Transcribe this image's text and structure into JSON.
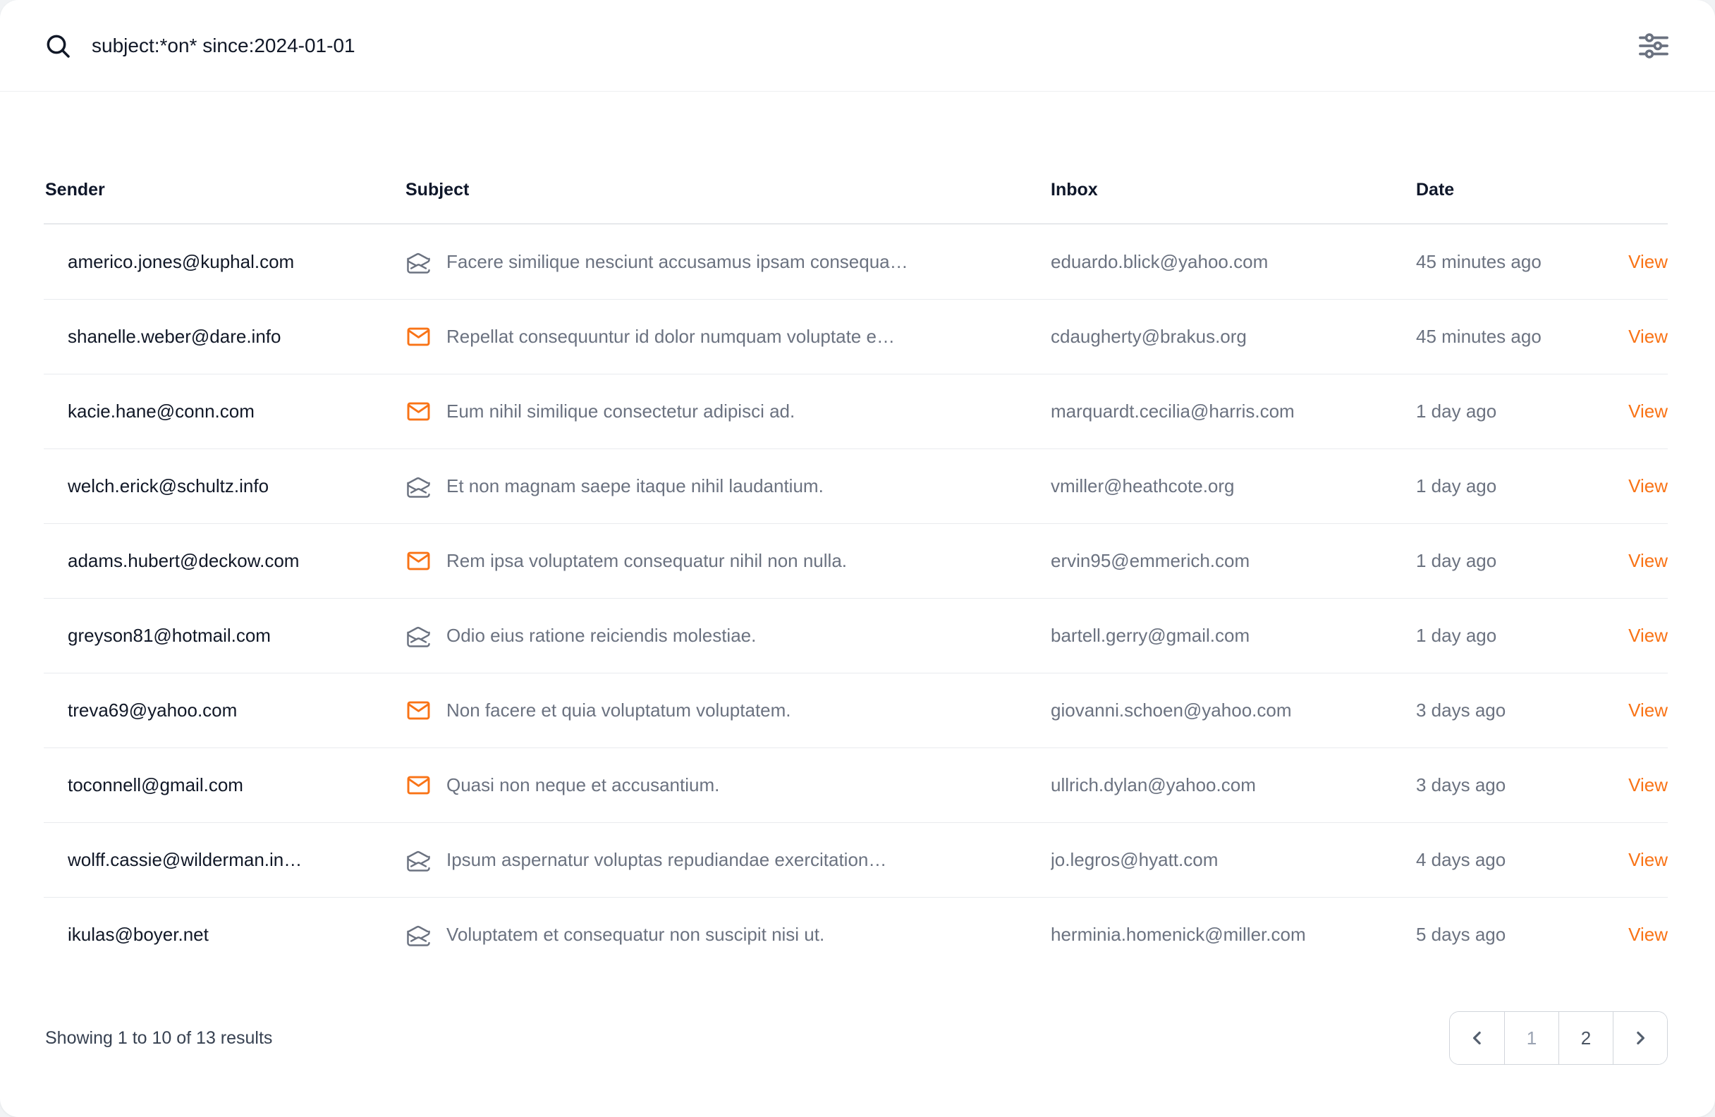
{
  "search": {
    "query": "subject:*on* since:2024-01-01",
    "icons": {
      "left": "search-icon",
      "right": "filters-icon"
    }
  },
  "table": {
    "columns": [
      "Sender",
      "Subject",
      "Inbox",
      "Date"
    ],
    "view_label": "View",
    "status_icons": {
      "unread": "envelope-icon",
      "read": "envelope-open-icon"
    },
    "rows": [
      {
        "sender": "americo.jones@kuphal.com",
        "status": "read",
        "subject": "Facere similique nesciunt accusamus ipsam consequa…",
        "inbox": "eduardo.blick@yahoo.com",
        "date": "45 minutes ago"
      },
      {
        "sender": "shanelle.weber@dare.info",
        "status": "unread",
        "subject": "Repellat consequuntur id dolor numquam voluptate e…",
        "inbox": "cdaugherty@brakus.org",
        "date": "45 minutes ago"
      },
      {
        "sender": "kacie.hane@conn.com",
        "status": "unread",
        "subject": "Eum nihil similique consectetur adipisci ad.",
        "inbox": "marquardt.cecilia@harris.com",
        "date": "1 day ago"
      },
      {
        "sender": "welch.erick@schultz.info",
        "status": "read",
        "subject": "Et non magnam saepe itaque nihil laudantium.",
        "inbox": "vmiller@heathcote.org",
        "date": "1 day ago"
      },
      {
        "sender": "adams.hubert@deckow.com",
        "status": "unread",
        "subject": "Rem ipsa voluptatem consequatur nihil non nulla.",
        "inbox": "ervin95@emmerich.com",
        "date": "1 day ago"
      },
      {
        "sender": "greyson81@hotmail.com",
        "status": "read",
        "subject": "Odio eius ratione reiciendis molestiae.",
        "inbox": "bartell.gerry@gmail.com",
        "date": "1 day ago"
      },
      {
        "sender": "treva69@yahoo.com",
        "status": "unread",
        "subject": "Non facere et quia voluptatum voluptatem.",
        "inbox": "giovanni.schoen@yahoo.com",
        "date": "3 days ago"
      },
      {
        "sender": "toconnell@gmail.com",
        "status": "unread",
        "subject": "Quasi non neque et accusantium.",
        "inbox": "ullrich.dylan@yahoo.com",
        "date": "3 days ago"
      },
      {
        "sender": "wolff.cassie@wilderman.in…",
        "status": "read",
        "subject": "Ipsum aspernatur voluptas repudiandae exercitation…",
        "inbox": "jo.legros@hyatt.com",
        "date": "4 days ago"
      },
      {
        "sender": "ikulas@boyer.net",
        "status": "read",
        "subject": "Voluptatem et consequatur non suscipit nisi ut.",
        "inbox": "herminia.homenick@miller.com",
        "date": "5 days ago"
      }
    ]
  },
  "footer": {
    "summary": "Showing 1 to 10 of 13 results",
    "pages": [
      "1",
      "2"
    ],
    "current_page": "1",
    "prev_icon": "chevron-left-icon",
    "next_icon": "chevron-right-icon"
  },
  "colors": {
    "accent_orange": "#f97316",
    "unread_icon": "#f97316",
    "read_icon": "#6b7280",
    "sender_text": "#111827",
    "muted_text": "#6b7280",
    "page_background": "#f1f3f5"
  }
}
